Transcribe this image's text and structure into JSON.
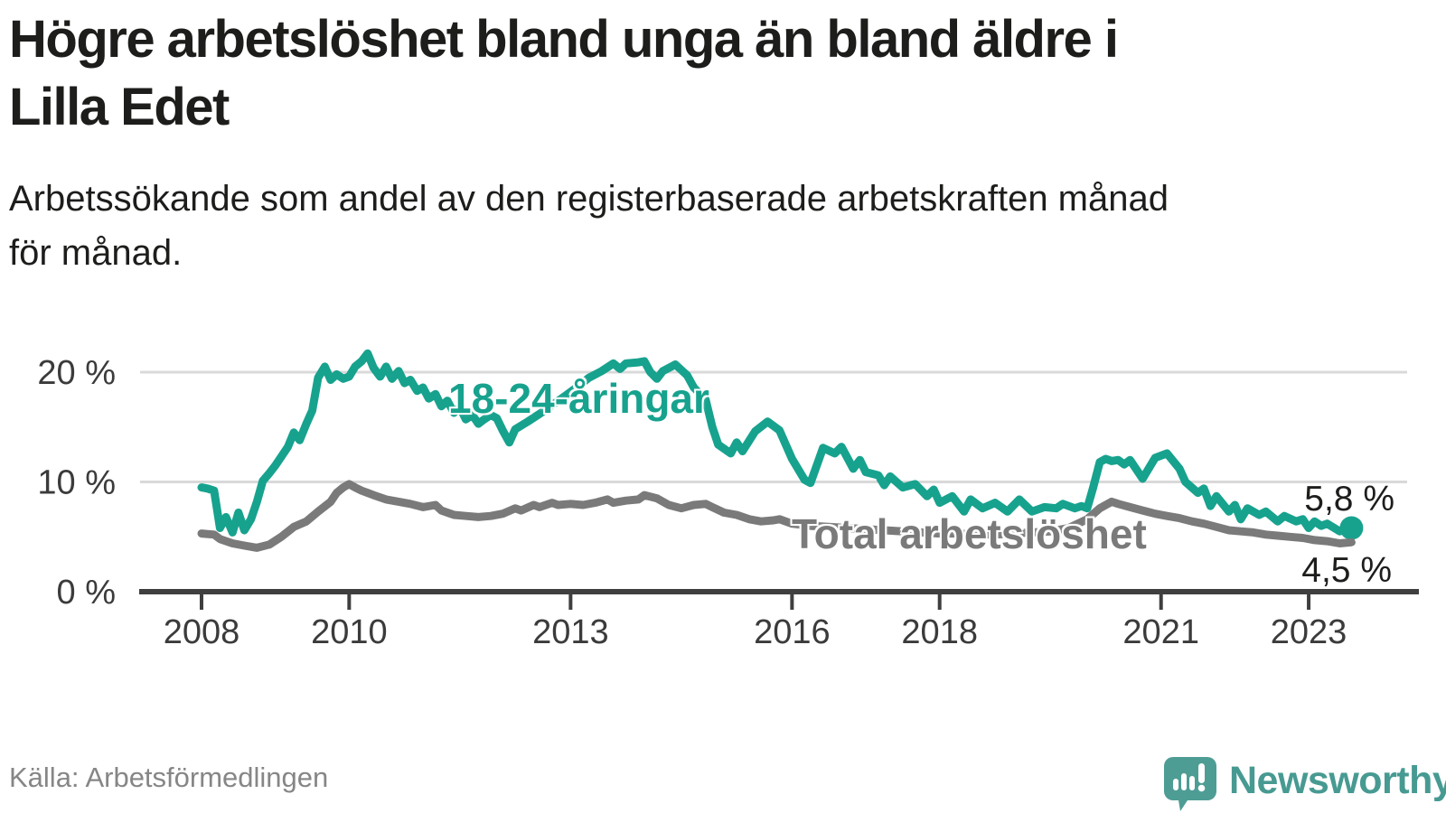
{
  "title": {
    "line1": "Högre arbetslöshet bland unga än bland äldre i",
    "line2": "Lilla Edet"
  },
  "subtitle": {
    "line1": "Arbetssökande som andel av den registerbaserade arbetskraften månad",
    "line2": "för månad."
  },
  "source": "Källa: Arbetsförmedlingen",
  "branding": {
    "wordmark": "Newsworthy",
    "logo_color": "#4d9d95",
    "wordmark_color": "#479a92"
  },
  "chart_data": {
    "type": "line",
    "unit": "%",
    "grid": "horizontal",
    "grid_color": "#d9d9d9",
    "axis_color": "#3f3f3f",
    "x_axis": {
      "range": [
        2007.9,
        2023.9
      ],
      "ticks": [
        {
          "label": "2008",
          "year": 2008
        },
        {
          "label": "2010",
          "year": 2010
        },
        {
          "label": "2013",
          "year": 2013
        },
        {
          "label": "2016",
          "year": 2016
        },
        {
          "label": "2018",
          "year": 2018
        },
        {
          "label": "2021",
          "year": 2021
        },
        {
          "label": "2023",
          "year": 2023
        }
      ]
    },
    "y_axis": {
      "range": [
        0,
        22
      ],
      "ticks": [
        {
          "label": "0 %",
          "value": 0
        },
        {
          "label": "10 %",
          "value": 10
        },
        {
          "label": "20 %",
          "value": 20
        }
      ]
    },
    "series": [
      {
        "name": "18-24-åringar",
        "label": "18-24-åringar",
        "color": "#17a28e",
        "end_label": "5,8 %",
        "end_value": 5.8,
        "end_dot": true,
        "points": [
          [
            2008.0,
            9.5
          ],
          [
            2008.08,
            9.4
          ],
          [
            2008.17,
            9.2
          ],
          [
            2008.25,
            5.8
          ],
          [
            2008.33,
            6.8
          ],
          [
            2008.42,
            5.4
          ],
          [
            2008.5,
            7.2
          ],
          [
            2008.58,
            5.6
          ],
          [
            2008.67,
            6.6
          ],
          [
            2008.75,
            8.2
          ],
          [
            2008.83,
            10.1
          ],
          [
            2008.92,
            10.8
          ],
          [
            2009.0,
            11.5
          ],
          [
            2009.17,
            13.2
          ],
          [
            2009.25,
            14.5
          ],
          [
            2009.33,
            13.8
          ],
          [
            2009.42,
            15.3
          ],
          [
            2009.5,
            16.5
          ],
          [
            2009.58,
            19.5
          ],
          [
            2009.67,
            20.5
          ],
          [
            2009.75,
            19.3
          ],
          [
            2009.83,
            19.8
          ],
          [
            2009.92,
            19.4
          ],
          [
            2010.0,
            19.6
          ],
          [
            2010.08,
            20.5
          ],
          [
            2010.17,
            21.0
          ],
          [
            2010.25,
            21.7
          ],
          [
            2010.33,
            20.4
          ],
          [
            2010.42,
            19.6
          ],
          [
            2010.5,
            20.5
          ],
          [
            2010.58,
            19.4
          ],
          [
            2010.67,
            20.1
          ],
          [
            2010.75,
            19.0
          ],
          [
            2010.83,
            19.3
          ],
          [
            2010.92,
            18.3
          ],
          [
            2011.0,
            18.6
          ],
          [
            2011.08,
            17.6
          ],
          [
            2011.17,
            18.0
          ],
          [
            2011.25,
            16.9
          ],
          [
            2011.33,
            17.4
          ],
          [
            2011.42,
            16.3
          ],
          [
            2011.5,
            16.8
          ],
          [
            2011.58,
            15.7
          ],
          [
            2011.67,
            16.1
          ],
          [
            2011.75,
            15.3
          ],
          [
            2011.83,
            15.7
          ],
          [
            2011.92,
            16.1
          ],
          [
            2012.0,
            15.8
          ],
          [
            2012.08,
            14.7
          ],
          [
            2012.17,
            13.6
          ],
          [
            2012.25,
            14.8
          ],
          [
            2012.42,
            15.5
          ],
          [
            2012.58,
            16.2
          ],
          [
            2012.75,
            17.0
          ],
          [
            2012.92,
            17.8
          ],
          [
            2013.08,
            18.6
          ],
          [
            2013.25,
            19.5
          ],
          [
            2013.42,
            20.1
          ],
          [
            2013.58,
            20.8
          ],
          [
            2013.67,
            20.3
          ],
          [
            2013.75,
            20.8
          ],
          [
            2013.92,
            20.9
          ],
          [
            2014.0,
            21.0
          ],
          [
            2014.08,
            20.0
          ],
          [
            2014.17,
            19.4
          ],
          [
            2014.25,
            20.1
          ],
          [
            2014.42,
            20.7
          ],
          [
            2014.58,
            19.7
          ],
          [
            2014.67,
            18.6
          ],
          [
            2014.83,
            17.5
          ],
          [
            2014.92,
            15.0
          ],
          [
            2015.0,
            13.4
          ],
          [
            2015.17,
            12.6
          ],
          [
            2015.25,
            13.6
          ],
          [
            2015.33,
            12.8
          ],
          [
            2015.5,
            14.6
          ],
          [
            2015.67,
            15.5
          ],
          [
            2015.83,
            14.7
          ],
          [
            2016.0,
            12.1
          ],
          [
            2016.17,
            10.2
          ],
          [
            2016.25,
            9.9
          ],
          [
            2016.42,
            13.1
          ],
          [
            2016.58,
            12.6
          ],
          [
            2016.67,
            13.2
          ],
          [
            2016.83,
            11.2
          ],
          [
            2016.92,
            12.0
          ],
          [
            2017.0,
            10.9
          ],
          [
            2017.17,
            10.6
          ],
          [
            2017.25,
            9.7
          ],
          [
            2017.33,
            10.5
          ],
          [
            2017.5,
            9.5
          ],
          [
            2017.67,
            9.8
          ],
          [
            2017.83,
            8.7
          ],
          [
            2017.92,
            9.3
          ],
          [
            2018.0,
            8.1
          ],
          [
            2018.17,
            8.7
          ],
          [
            2018.33,
            7.3
          ],
          [
            2018.42,
            8.4
          ],
          [
            2018.58,
            7.6
          ],
          [
            2018.75,
            8.1
          ],
          [
            2018.92,
            7.3
          ],
          [
            2019.08,
            8.4
          ],
          [
            2019.25,
            7.3
          ],
          [
            2019.42,
            7.7
          ],
          [
            2019.58,
            7.6
          ],
          [
            2019.67,
            8.0
          ],
          [
            2019.83,
            7.6
          ],
          [
            2019.92,
            7.8
          ],
          [
            2020.0,
            7.6
          ],
          [
            2020.08,
            9.5
          ],
          [
            2020.17,
            11.8
          ],
          [
            2020.25,
            12.1
          ],
          [
            2020.33,
            11.9
          ],
          [
            2020.42,
            12.0
          ],
          [
            2020.5,
            11.6
          ],
          [
            2020.58,
            12.0
          ],
          [
            2020.75,
            10.3
          ],
          [
            2020.92,
            12.2
          ],
          [
            2021.08,
            12.6
          ],
          [
            2021.25,
            11.2
          ],
          [
            2021.33,
            10.0
          ],
          [
            2021.5,
            9.0
          ],
          [
            2021.58,
            9.4
          ],
          [
            2021.67,
            7.8
          ],
          [
            2021.75,
            8.7
          ],
          [
            2021.92,
            7.3
          ],
          [
            2022.0,
            7.9
          ],
          [
            2022.08,
            6.6
          ],
          [
            2022.17,
            7.6
          ],
          [
            2022.33,
            7.0
          ],
          [
            2022.42,
            7.3
          ],
          [
            2022.58,
            6.4
          ],
          [
            2022.67,
            6.9
          ],
          [
            2022.83,
            6.4
          ],
          [
            2022.92,
            6.6
          ],
          [
            2023.0,
            5.8
          ],
          [
            2023.08,
            6.4
          ],
          [
            2023.17,
            6.0
          ],
          [
            2023.25,
            6.2
          ],
          [
            2023.42,
            5.5
          ],
          [
            2023.58,
            5.8
          ]
        ]
      },
      {
        "name": "Total arbetslöshet",
        "label": "Total arbetslöshet",
        "color": "#7a7a7a",
        "end_label": "4,5 %",
        "end_value": 4.5,
        "end_dot": false,
        "points": [
          [
            2008.0,
            5.3
          ],
          [
            2008.17,
            5.2
          ],
          [
            2008.25,
            4.8
          ],
          [
            2008.42,
            4.4
          ],
          [
            2008.58,
            4.2
          ],
          [
            2008.75,
            4.0
          ],
          [
            2008.92,
            4.3
          ],
          [
            2009.08,
            5.0
          ],
          [
            2009.25,
            5.9
          ],
          [
            2009.42,
            6.4
          ],
          [
            2009.58,
            7.3
          ],
          [
            2009.75,
            8.2
          ],
          [
            2009.83,
            9.0
          ],
          [
            2009.92,
            9.5
          ],
          [
            2010.0,
            9.8
          ],
          [
            2010.08,
            9.5
          ],
          [
            2010.17,
            9.2
          ],
          [
            2010.25,
            9.0
          ],
          [
            2010.33,
            8.8
          ],
          [
            2010.5,
            8.4
          ],
          [
            2010.67,
            8.2
          ],
          [
            2010.83,
            8.0
          ],
          [
            2011.0,
            7.7
          ],
          [
            2011.17,
            7.9
          ],
          [
            2011.25,
            7.4
          ],
          [
            2011.42,
            7.0
          ],
          [
            2011.58,
            6.9
          ],
          [
            2011.75,
            6.8
          ],
          [
            2011.92,
            6.9
          ],
          [
            2012.08,
            7.1
          ],
          [
            2012.25,
            7.6
          ],
          [
            2012.33,
            7.4
          ],
          [
            2012.5,
            7.9
          ],
          [
            2012.58,
            7.7
          ],
          [
            2012.75,
            8.1
          ],
          [
            2012.83,
            7.9
          ],
          [
            2013.0,
            8.0
          ],
          [
            2013.17,
            7.9
          ],
          [
            2013.33,
            8.1
          ],
          [
            2013.5,
            8.4
          ],
          [
            2013.58,
            8.1
          ],
          [
            2013.75,
            8.3
          ],
          [
            2013.92,
            8.4
          ],
          [
            2014.0,
            8.8
          ],
          [
            2014.17,
            8.5
          ],
          [
            2014.33,
            7.9
          ],
          [
            2014.5,
            7.6
          ],
          [
            2014.67,
            7.9
          ],
          [
            2014.83,
            8.0
          ],
          [
            2014.92,
            7.7
          ],
          [
            2015.08,
            7.2
          ],
          [
            2015.25,
            7.0
          ],
          [
            2015.42,
            6.6
          ],
          [
            2015.58,
            6.4
          ],
          [
            2015.75,
            6.5
          ],
          [
            2015.83,
            6.6
          ],
          [
            2016.0,
            6.2
          ],
          [
            2016.25,
            6.0
          ],
          [
            2016.5,
            5.9
          ],
          [
            2016.75,
            5.8
          ],
          [
            2017.0,
            5.7
          ],
          [
            2017.25,
            5.6
          ],
          [
            2017.5,
            5.5
          ],
          [
            2017.75,
            5.4
          ],
          [
            2018.0,
            5.3
          ],
          [
            2018.25,
            5.3
          ],
          [
            2018.5,
            5.2
          ],
          [
            2018.75,
            5.2
          ],
          [
            2019.0,
            5.3
          ],
          [
            2019.25,
            5.4
          ],
          [
            2019.5,
            5.5
          ],
          [
            2019.75,
            5.8
          ],
          [
            2020.0,
            6.6
          ],
          [
            2020.17,
            7.6
          ],
          [
            2020.33,
            8.2
          ],
          [
            2020.42,
            8.0
          ],
          [
            2020.58,
            7.7
          ],
          [
            2020.75,
            7.4
          ],
          [
            2020.92,
            7.1
          ],
          [
            2021.08,
            6.9
          ],
          [
            2021.25,
            6.7
          ],
          [
            2021.42,
            6.4
          ],
          [
            2021.58,
            6.2
          ],
          [
            2021.75,
            5.9
          ],
          [
            2021.92,
            5.6
          ],
          [
            2022.08,
            5.5
          ],
          [
            2022.25,
            5.4
          ],
          [
            2022.42,
            5.2
          ],
          [
            2022.58,
            5.1
          ],
          [
            2022.75,
            5.0
          ],
          [
            2022.92,
            4.9
          ],
          [
            2023.08,
            4.7
          ],
          [
            2023.25,
            4.6
          ],
          [
            2023.42,
            4.4
          ],
          [
            2023.58,
            4.5
          ]
        ]
      }
    ]
  }
}
